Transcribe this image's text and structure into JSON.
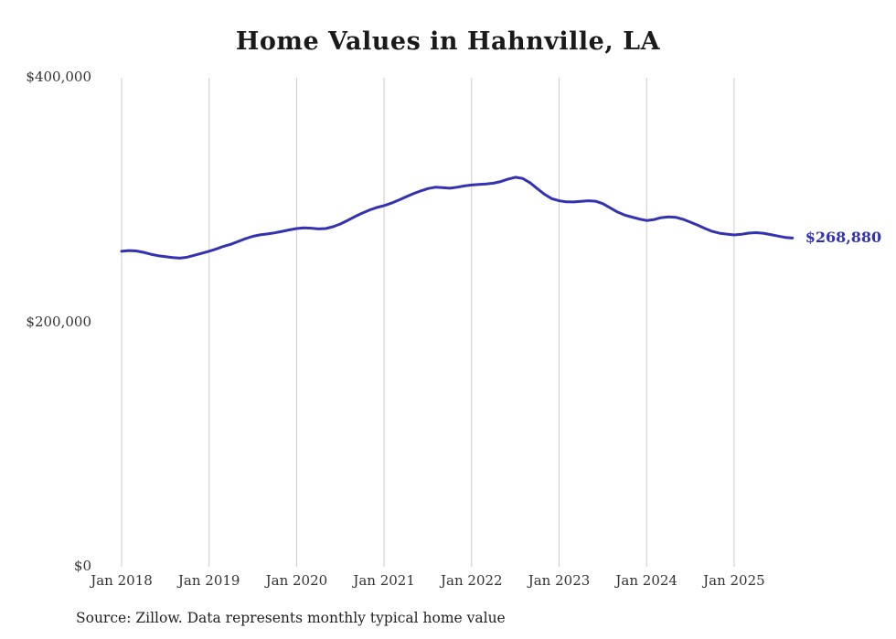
{
  "title": "Home Values in Hahnville, LA",
  "source_note": "Source: Zillow. Data represents monthly typical home value",
  "end_label": "$268,880",
  "colors": {
    "line": "#3333b2",
    "grid": "#cccccc",
    "tick_text": "#333333",
    "title_text": "#1a1a1a",
    "end_label_text": "#3333b2"
  },
  "chart_data": {
    "type": "line",
    "title": "Home Values in Hahnville, LA",
    "xlabel": "",
    "ylabel": "",
    "ylim": [
      0,
      400000
    ],
    "y_ticks": [
      0,
      200000,
      400000
    ],
    "y_tick_labels": [
      "$0",
      "$200,000",
      "$400,000"
    ],
    "x_tick_labels": [
      "Jan 2018",
      "Jan 2019",
      "Jan 2020",
      "Jan 2021",
      "Jan 2022",
      "Jan 2023",
      "Jan 2024",
      "Jan 2025"
    ],
    "x_tick_month_indices": [
      0,
      12,
      24,
      36,
      48,
      60,
      72,
      84
    ],
    "grid": "vertical-only",
    "legend": "none",
    "x_start": "2018-01",
    "x_interval": "month",
    "series": [
      {
        "name": "Typical home value (USD)",
        "values": [
          258000,
          258600,
          258300,
          257200,
          255600,
          254400,
          253700,
          252900,
          252400,
          253200,
          254800,
          256400,
          258100,
          260000,
          262100,
          263800,
          266100,
          268400,
          270300,
          271500,
          272200,
          273100,
          274300,
          275500,
          276600,
          277200,
          276900,
          276300,
          276600,
          278100,
          280400,
          283300,
          286400,
          289300,
          291800,
          293800,
          295400,
          297400,
          299900,
          302500,
          305100,
          307400,
          309300,
          310400,
          310100,
          309600,
          310400,
          311500,
          312200,
          312700,
          313100,
          313700,
          315100,
          317100,
          318600,
          317600,
          314200,
          309300,
          304700,
          301100,
          299400,
          298500,
          298400,
          298900,
          299400,
          299000,
          297000,
          293600,
          290200,
          287600,
          286000,
          284400,
          283200,
          284000,
          285500,
          286200,
          285800,
          284200,
          281900,
          279400,
          276700,
          274300,
          272800,
          272100,
          271400,
          271900,
          272900,
          273300,
          272800,
          271700,
          270500,
          269400,
          268880
        ]
      }
    ],
    "end_value": 268880
  }
}
